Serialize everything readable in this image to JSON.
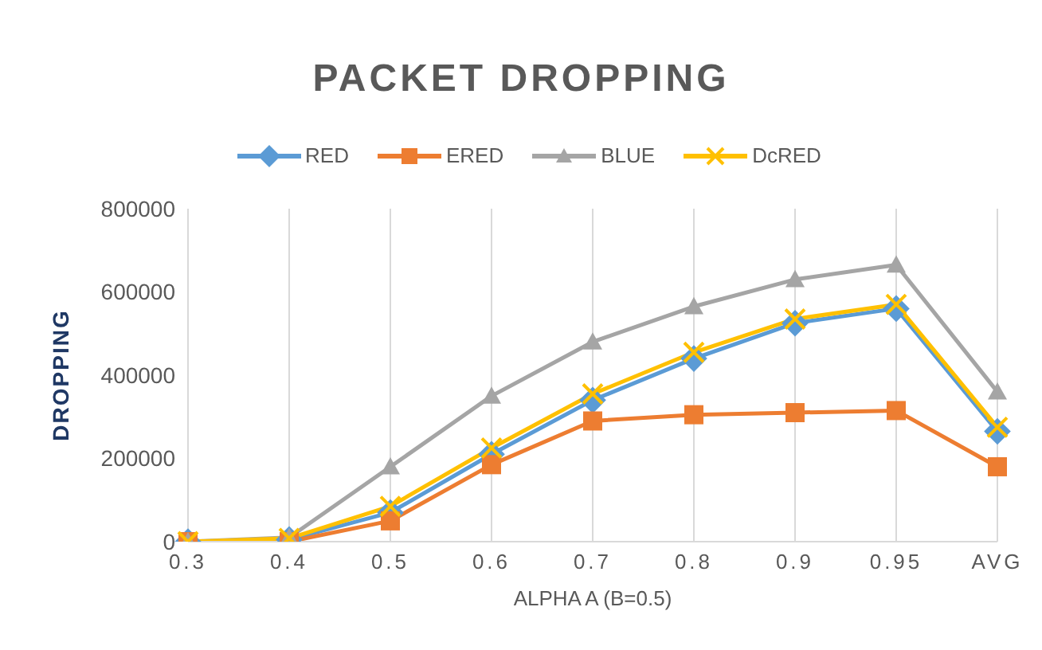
{
  "chart_data": {
    "type": "line",
    "title": "PACKET DROPPING",
    "xlabel": "ALPHA A (B=0.5)",
    "ylabel": "DROPPING",
    "categories": [
      "0.3",
      "0.4",
      "0.5",
      "0.6",
      "0.7",
      "0.8",
      "0.9",
      "0.95",
      "AVG"
    ],
    "series": [
      {
        "name": "RED",
        "color": "#5b9bd5",
        "marker": "diamond",
        "values": [
          0,
          5000,
          70000,
          210000,
          340000,
          440000,
          525000,
          560000,
          265000
        ]
      },
      {
        "name": "ERED",
        "color": "#ed7d31",
        "marker": "square",
        "values": [
          0,
          0,
          50000,
          185000,
          290000,
          305000,
          310000,
          315000,
          180000
        ]
      },
      {
        "name": "BLUE",
        "color": "#a5a5a5",
        "marker": "triangle",
        "values": [
          0,
          10000,
          180000,
          350000,
          480000,
          565000,
          630000,
          665000,
          360000
        ]
      },
      {
        "name": "DcRED",
        "color": "#ffc000",
        "marker": "cross",
        "values": [
          0,
          8000,
          85000,
          225000,
          355000,
          455000,
          535000,
          570000,
          275000
        ]
      }
    ],
    "ylim": [
      0,
      800000
    ],
    "yticks": [
      0,
      200000,
      400000,
      600000,
      800000
    ],
    "grid": "x",
    "legend": "top",
    "line_style": "solid"
  }
}
